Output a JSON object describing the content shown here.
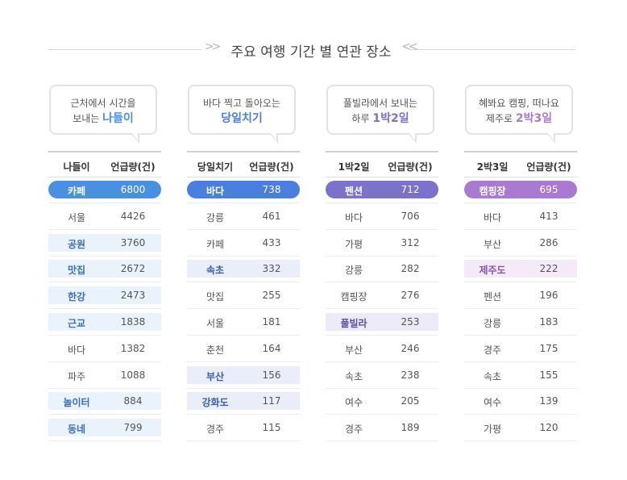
{
  "title": "주요 여행 기간 별 연관 장소",
  "chart_data": [
    {
      "type": "table",
      "bubble_line1": "근처에서 시간을",
      "bubble_line2_prefix": "보내는",
      "bubble_highlight": "나들이",
      "headers": [
        "나들이",
        "언급량(건)"
      ],
      "categories": [
        "카페",
        "서울",
        "공원",
        "맛집",
        "한강",
        "근교",
        "바다",
        "파주",
        "놀이터",
        "동네"
      ],
      "values": [
        6800,
        4426,
        3760,
        2672,
        2473,
        1838,
        1382,
        1088,
        884,
        799
      ],
      "highlight_rows": [
        2,
        3,
        4,
        5,
        8,
        9
      ],
      "accent_color": "#4a90e2",
      "light_color": "#eaf2fb",
      "dark_color": "#3a6fb6"
    },
    {
      "type": "table",
      "bubble_line1": "바다 찍고 돌아오는",
      "bubble_line2_prefix": "",
      "bubble_highlight": "당일치기",
      "headers": [
        "당일치기",
        "언급량(건)"
      ],
      "categories": [
        "바다",
        "강릉",
        "카페",
        "속초",
        "맛집",
        "서울",
        "춘천",
        "부산",
        "강화도",
        "경주"
      ],
      "values": [
        738,
        461,
        433,
        332,
        255,
        181,
        164,
        156,
        117,
        115
      ],
      "highlight_rows": [
        3,
        7,
        8
      ],
      "accent_color": "#4a7fe0",
      "light_color": "#e9eef9",
      "dark_color": "#3b5fb0"
    },
    {
      "type": "table",
      "bubble_line1": "풀빌라에서 보내는",
      "bubble_line2_prefix": "하루",
      "bubble_highlight": "1박2일",
      "headers": [
        "1박2일",
        "언급량(건)"
      ],
      "categories": [
        "펜션",
        "바다",
        "가평",
        "강릉",
        "캠핑장",
        "풀빌라",
        "부산",
        "속초",
        "여수",
        "경주"
      ],
      "values": [
        712,
        706,
        312,
        282,
        276,
        253,
        246,
        238,
        205,
        189
      ],
      "highlight_rows": [
        5
      ],
      "accent_color": "#7b72cc",
      "light_color": "#ecebf7",
      "dark_color": "#5b52a8"
    },
    {
      "type": "table",
      "bubble_line1": "혜봐요 캠핑, 떠나요",
      "bubble_line2_prefix": "제주로",
      "bubble_highlight": "2박3일",
      "headers": [
        "2박3일",
        "언급량(건)"
      ],
      "categories": [
        "캠핑장",
        "바다",
        "부산",
        "제주도",
        "펜션",
        "강릉",
        "경주",
        "속초",
        "여수",
        "가평"
      ],
      "values": [
        695,
        413,
        286,
        222,
        196,
        183,
        175,
        155,
        139,
        120
      ],
      "highlight_rows": [
        3
      ],
      "accent_color": "#a97ad0",
      "light_color": "#f4eaf8",
      "dark_color": "#8a55b3"
    }
  ]
}
